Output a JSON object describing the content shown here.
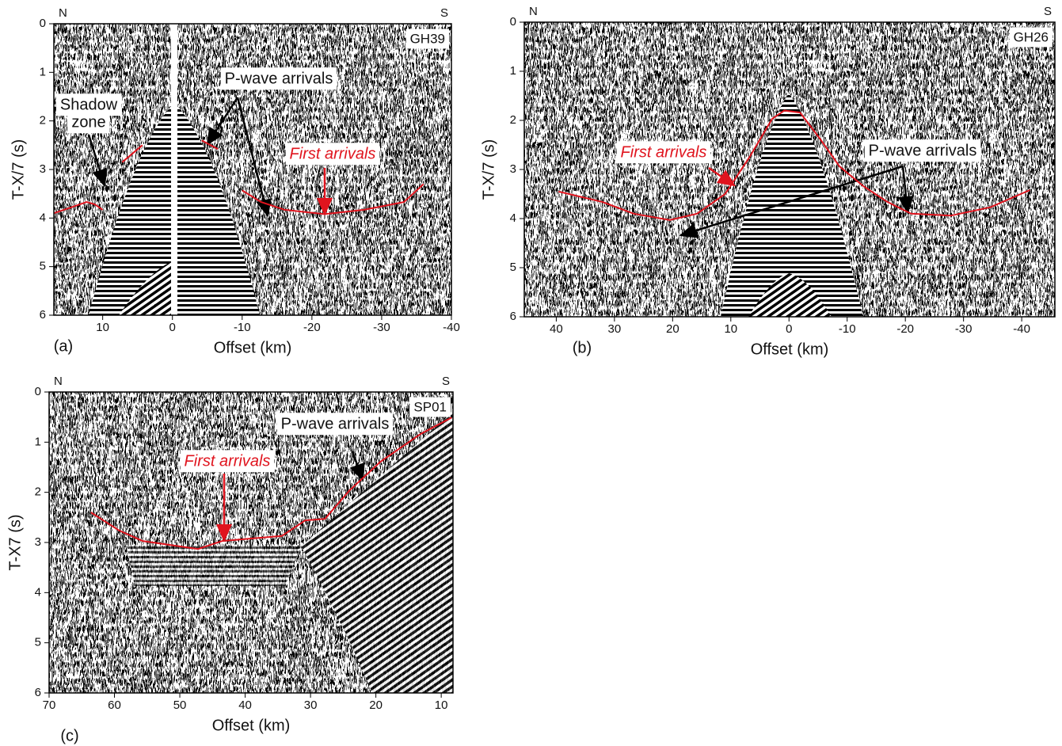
{
  "chart_data": [
    {
      "type": "line",
      "panel_label": "(a)",
      "station": "GH39",
      "left_direction": "N",
      "right_direction": "S",
      "xlabel": "Offset (km)",
      "ylabel": "T-X/7 (s)",
      "xlim": [
        17,
        -40
      ],
      "ylim": [
        0,
        6
      ],
      "xticks": [
        10,
        0,
        -10,
        -20,
        -30,
        -40
      ],
      "yticks": [
        0,
        1,
        2,
        3,
        4,
        5,
        6
      ],
      "annotations": [
        "P-wave arrivals",
        "Shadow",
        "zone"
      ],
      "series": [
        {
          "name": "First arrivals",
          "color": "#e0141e",
          "x": [
            17,
            14.5,
            12.3,
            11.1,
            10,
            null,
            7.2,
            4.3,
            null,
            -4.2,
            -6.5,
            null,
            -10,
            -12.7,
            -16.1,
            -21.8,
            -27.5,
            -33.2,
            -36
          ],
          "values": [
            3.9,
            3.78,
            3.67,
            3.72,
            3.83,
            null,
            2.85,
            2.5,
            null,
            2.4,
            2.58,
            null,
            3.43,
            3.67,
            3.83,
            3.92,
            3.83,
            3.67,
            3.3
          ]
        }
      ]
    },
    {
      "type": "line",
      "panel_label": "(b)",
      "station": "GH26",
      "left_direction": "N",
      "right_direction": "S",
      "xlabel": "Offset (km)",
      "ylabel": "T-X/7 (s)",
      "xlim": [
        45.5,
        -45.7
      ],
      "ylim": [
        0,
        6
      ],
      "xticks": [
        40,
        30,
        20,
        10,
        0,
        -10,
        -20,
        -30,
        -40
      ],
      "yticks": [
        0,
        1,
        2,
        3,
        4,
        5,
        6
      ],
      "annotations": [
        "P-wave arrivals"
      ],
      "series": [
        {
          "name": "First arrivals",
          "color": "#e0141e",
          "x": [
            39.6,
            32.1,
            26.7,
            20.5,
            15.8,
            11,
            6.9,
            2.9,
            0.8,
            -1.9,
            -5.3,
            -8.7,
            -12.8,
            -16.9,
            -21,
            -27.8,
            -34.6,
            -41.4
          ],
          "values": [
            3.45,
            3.66,
            3.9,
            4.03,
            3.9,
            3.5,
            2.77,
            1.97,
            1.8,
            1.84,
            2.37,
            2.94,
            3.34,
            3.66,
            3.9,
            3.94,
            3.77,
            3.42
          ]
        }
      ]
    },
    {
      "type": "line",
      "panel_label": "(c)",
      "station": "SP01",
      "left_direction": "N",
      "right_direction": "S",
      "xlabel": "Offset (km)",
      "ylabel": "T-X7 (s)",
      "xlim": [
        70,
        8.2
      ],
      "ylim": [
        0,
        6
      ],
      "xticks": [
        70,
        60,
        50,
        40,
        30,
        20,
        10
      ],
      "yticks": [
        0,
        1,
        2,
        3,
        4,
        5,
        6
      ],
      "annotations": [
        "P-wave arrivals"
      ],
      "series": [
        {
          "name": "First arrivals",
          "color": "#e0141e",
          "x": [
            63.6,
            59.3,
            55.7,
            47.2,
            43.5,
            34.4,
            30.8,
            27.8,
            24.1,
            19.3,
            13.2,
            8.4
          ],
          "values": [
            2.4,
            2.76,
            2.97,
            3.13,
            2.97,
            2.87,
            2.56,
            2.53,
            1.97,
            1.39,
            0.84,
            0.51
          ]
        }
      ]
    }
  ]
}
